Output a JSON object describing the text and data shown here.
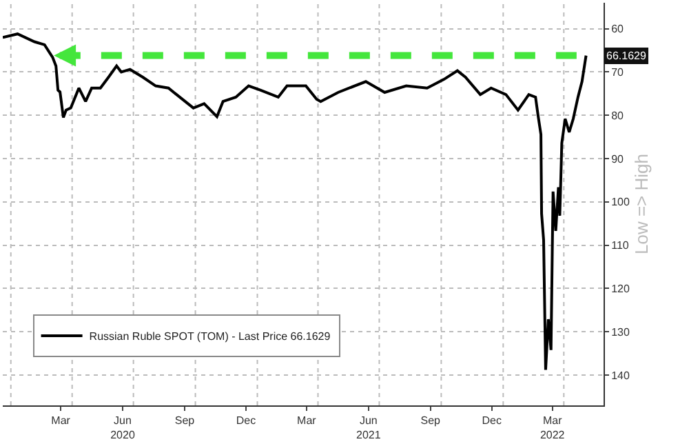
{
  "chart_data": {
    "type": "line",
    "ylabel": "Low => High",
    "x": [
      "2019-12-20",
      "2020-01-11",
      "2020-02-05",
      "2020-02-20",
      "2020-03-03",
      "2020-03-08",
      "2020-03-11",
      "2020-03-14",
      "2020-03-19",
      "2020-03-23",
      "2020-03-30",
      "2020-04-11",
      "2020-04-21",
      "2020-04-30",
      "2020-05-13",
      "2020-05-25",
      "2020-06-06",
      "2020-06-13",
      "2020-06-26",
      "2020-07-15",
      "2020-08-03",
      "2020-08-22",
      "2020-09-03",
      "2020-09-28",
      "2020-10-14",
      "2020-11-02",
      "2020-11-11",
      "2020-11-30",
      "2020-12-19",
      "2021-01-06",
      "2021-02-01",
      "2021-02-14",
      "2021-03-14",
      "2021-03-30",
      "2021-04-05",
      "2021-05-01",
      "2021-06-11",
      "2021-07-09",
      "2021-08-10",
      "2021-09-10",
      "2021-10-05",
      "2021-10-25",
      "2021-11-06",
      "2021-11-28",
      "2021-12-14",
      "2022-01-05",
      "2022-01-23",
      "2022-02-08",
      "2022-02-18",
      "2022-02-22",
      "2022-02-26",
      "2022-02-27",
      "2022-03-02",
      "2022-03-05",
      "2022-03-09",
      "2022-03-13",
      "2022-03-16",
      "2022-03-20",
      "2022-03-24",
      "2022-03-26",
      "2022-03-29",
      "2022-04-03",
      "2022-04-09",
      "2022-04-15",
      "2022-04-22",
      "2022-04-28",
      "2022-05-04"
    ],
    "series": [
      {
        "name": "Russian Ruble SPOT (TOM) - Last Price 66.1629",
        "color": "#000000",
        "values": [
          62.0,
          61.2,
          63.0,
          63.7,
          66.6,
          68.6,
          74.2,
          74.6,
          80.5,
          78.8,
          78.3,
          73.7,
          76.8,
          73.7,
          73.7,
          71.2,
          68.6,
          70.0,
          69.4,
          71.2,
          73.2,
          73.7,
          75.2,
          78.3,
          77.3,
          80.3,
          76.8,
          75.8,
          73.2,
          74.2,
          75.8,
          73.2,
          73.2,
          76.3,
          76.8,
          74.7,
          72.2,
          74.7,
          73.2,
          73.7,
          71.7,
          69.7,
          71.2,
          75.2,
          73.7,
          75.2,
          78.8,
          75.2,
          75.8,
          80.3,
          84.4,
          102.7,
          108.8,
          138.8,
          127.1,
          134.2,
          97.6,
          106.7,
          96.6,
          103.2,
          86.4,
          80.8,
          83.9,
          80.8,
          75.8,
          72.2,
          66.2
        ]
      }
    ],
    "annotations": [
      {
        "text": "66.1629",
        "y": 66.1629
      }
    ],
    "ref_lines": [
      {
        "axis": "y",
        "value": 66.1629,
        "color": "#44e63c",
        "line_style": "dashed"
      }
    ],
    "xlim": [
      "2019-12-20",
      "2022-05-30"
    ],
    "xticks": [
      {
        "value": "2020-01-01",
        "label": null
      },
      {
        "value": "2020-03-15",
        "label": "Mar"
      },
      {
        "value": "2020-04-01",
        "label": null
      },
      {
        "value": "2020-06-15",
        "label": "Jun\n2020"
      },
      {
        "value": "2020-07-01",
        "label": null
      },
      {
        "value": "2020-09-15",
        "label": "Sep"
      },
      {
        "value": "2020-10-01",
        "label": null
      },
      {
        "value": "2020-12-15",
        "label": "Dec"
      },
      {
        "value": "2021-01-01",
        "label": null
      },
      {
        "value": "2021-03-15",
        "label": "Mar"
      },
      {
        "value": "2021-04-01",
        "label": null
      },
      {
        "value": "2021-06-15",
        "label": "Jun\n2021"
      },
      {
        "value": "2021-07-01",
        "label": null
      },
      {
        "value": "2021-09-15",
        "label": "Sep"
      },
      {
        "value": "2021-10-01",
        "label": null
      },
      {
        "value": "2021-12-15",
        "label": "Dec"
      },
      {
        "value": "2022-01-01",
        "label": null
      },
      {
        "value": "2022-03-15",
        "label": "Mar\n2022"
      },
      {
        "value": "2022-04-01",
        "label": null
      }
    ],
    "ylim": [
      147,
      54
    ],
    "yticks": [
      60,
      70,
      80,
      90,
      100,
      110,
      120,
      130,
      140
    ],
    "grid": true,
    "legend": "bottom left",
    "marker": "none",
    "line_style": "solid"
  }
}
